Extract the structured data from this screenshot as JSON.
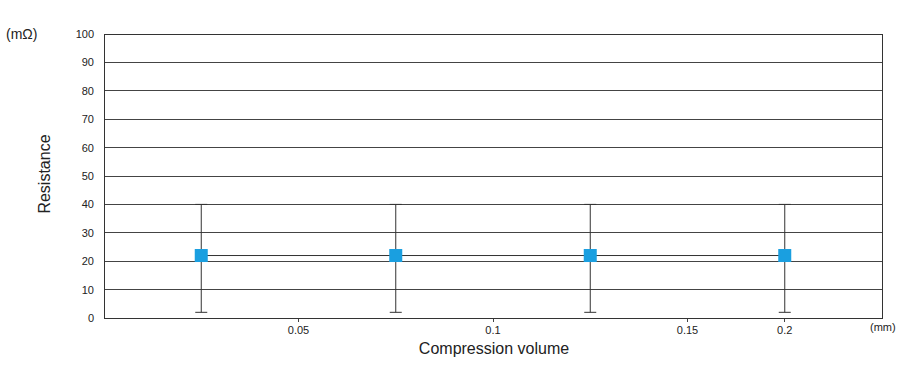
{
  "chart_data": {
    "type": "line",
    "x_label": "Compression volume",
    "x_unit": "(mm)",
    "y_label": "Resistance",
    "y_unit": "(mΩ)",
    "x": [
      0.025,
      0.075,
      0.125,
      0.175
    ],
    "values": [
      22,
      22,
      22,
      22
    ],
    "low": [
      2,
      2,
      2,
      2
    ],
    "high": [
      40,
      40,
      40,
      40
    ],
    "color": "#1a9fe0",
    "marker": "square",
    "line_style": "solid",
    "xlim": [
      0,
      0.2
    ],
    "xticks": [
      0.05,
      0.1,
      0.15,
      {
        "value": 0.175,
        "label": "0.2"
      }
    ],
    "ylim": [
      0,
      100
    ],
    "yticks": [
      0,
      10,
      20,
      30,
      40,
      50,
      60,
      70,
      80,
      90,
      100
    ],
    "grid": "y"
  }
}
